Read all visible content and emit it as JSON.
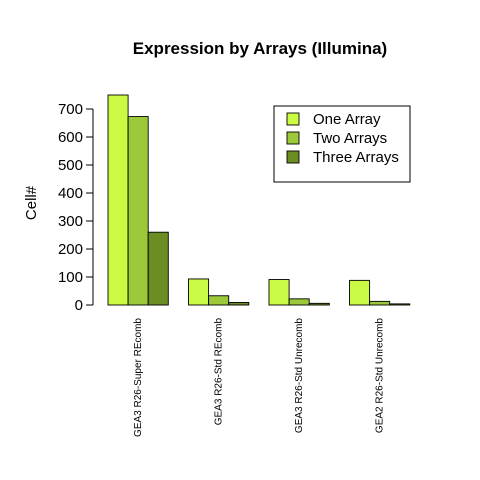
{
  "chart_data": {
    "type": "bar",
    "title": "Expression by Arrays (Illumina)",
    "xlabel": "",
    "ylabel": "Cell#",
    "ylim": [
      0,
      750
    ],
    "yticks": [
      0,
      100,
      200,
      300,
      400,
      500,
      600,
      700
    ],
    "categories": [
      "GEA3 R26-Super REcomb",
      "GEA3 R26-Std REcomb",
      "GEA3 R26-Std Unrecomb",
      "GEA2 R26-Std Unrecomb"
    ],
    "series": [
      {
        "name": "One Array",
        "color": "#cbfa44",
        "values": [
          750,
          93,
          91,
          88
        ]
      },
      {
        "name": "Two Arrays",
        "color": "#9bc93a",
        "values": [
          673,
          33,
          22,
          13
        ]
      },
      {
        "name": "Three Arrays",
        "color": "#6b8e23",
        "values": [
          260,
          9,
          6,
          4
        ]
      }
    ],
    "grid": false,
    "legend_position": "top-right"
  }
}
